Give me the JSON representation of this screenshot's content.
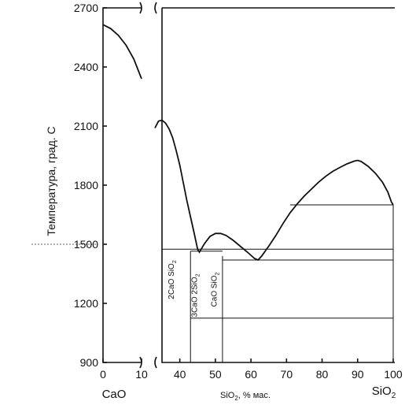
{
  "chart_data": {
    "type": "line",
    "title": "",
    "ylabel": "Температура, град. С",
    "xlabel_main": "SiO",
    "xlabel_sub": "2",
    "xlabel_tail": ", % мас.",
    "left_end_label": "CaO",
    "right_end_label_main": "SiO",
    "right_end_label_sub": "2",
    "ylim": [
      900,
      2700
    ],
    "y_ticks": [
      900,
      1200,
      1500,
      1800,
      2100,
      2400,
      2700
    ],
    "left_panel": {
      "xlim": [
        0,
        10
      ],
      "x_ticks": [
        0,
        10
      ]
    },
    "right_panel": {
      "xlim": [
        33,
        100
      ],
      "x_ticks": [
        40,
        50,
        60,
        70,
        80,
        90,
        100
      ]
    },
    "phase_labels": [
      {
        "main": "2CaO SiO",
        "sub": "2",
        "x": 35,
        "y": 1320
      },
      {
        "main": "3CaO 2SiO",
        "sub": "2",
        "x": 41.5,
        "y": 1240
      },
      {
        "main": "CaO SiO",
        "sub": "2",
        "x": 47,
        "y": 1270
      }
    ],
    "series": [
      {
        "panel": "left",
        "points": [
          [
            0,
            2615
          ],
          [
            2,
            2595
          ],
          [
            4,
            2560
          ],
          [
            6,
            2510
          ],
          [
            8,
            2440
          ],
          [
            10,
            2340
          ]
        ]
      },
      {
        "panel": "right",
        "points": [
          [
            33,
            2090
          ],
          [
            34,
            2125
          ],
          [
            35,
            2130
          ],
          [
            36,
            2115
          ],
          [
            37,
            2085
          ],
          [
            38,
            2040
          ],
          [
            39,
            1975
          ],
          [
            40,
            1900
          ],
          [
            41,
            1810
          ],
          [
            42,
            1720
          ],
          [
            43,
            1640
          ],
          [
            44,
            1560
          ],
          [
            45,
            1475
          ],
          [
            45.5,
            1460
          ],
          [
            47,
            1505
          ],
          [
            48.5,
            1540
          ],
          [
            50,
            1555
          ],
          [
            51.5,
            1555
          ],
          [
            53,
            1545
          ],
          [
            55,
            1520
          ],
          [
            57,
            1490
          ],
          [
            59,
            1460
          ],
          [
            61,
            1428
          ],
          [
            62,
            1420
          ],
          [
            63,
            1440
          ],
          [
            65,
            1490
          ],
          [
            67,
            1545
          ],
          [
            69,
            1605
          ],
          [
            71,
            1660
          ],
          [
            73,
            1705
          ],
          [
            75,
            1745
          ],
          [
            77,
            1780
          ],
          [
            79,
            1815
          ],
          [
            81,
            1845
          ],
          [
            83,
            1870
          ],
          [
            85,
            1890
          ],
          [
            87,
            1908
          ],
          [
            89,
            1922
          ],
          [
            90,
            1926
          ],
          [
            91,
            1920
          ],
          [
            93,
            1895
          ],
          [
            95,
            1860
          ],
          [
            97,
            1815
          ],
          [
            98.5,
            1765
          ],
          [
            99.5,
            1715
          ],
          [
            100,
            1700
          ]
        ]
      }
    ],
    "horizontals": [
      {
        "y": 1700,
        "x0": 71,
        "x1": 100
      },
      {
        "y": 1475,
        "x0": 35,
        "x1": 100
      },
      {
        "y": 1465,
        "x0": 43,
        "x1": 52
      },
      {
        "y": 1420,
        "x0": 52,
        "x1": 100
      },
      {
        "y": 1125,
        "x0": 43,
        "x1": 100
      }
    ],
    "verticals": [
      {
        "x": 35,
        "y0": 900,
        "y1": 1475
      },
      {
        "x": 43,
        "y0": 900,
        "y1": 1465
      },
      {
        "x": 52,
        "y0": 900,
        "y1": 1440
      },
      {
        "x": 100,
        "y0": 900,
        "y1": 1700
      }
    ]
  }
}
